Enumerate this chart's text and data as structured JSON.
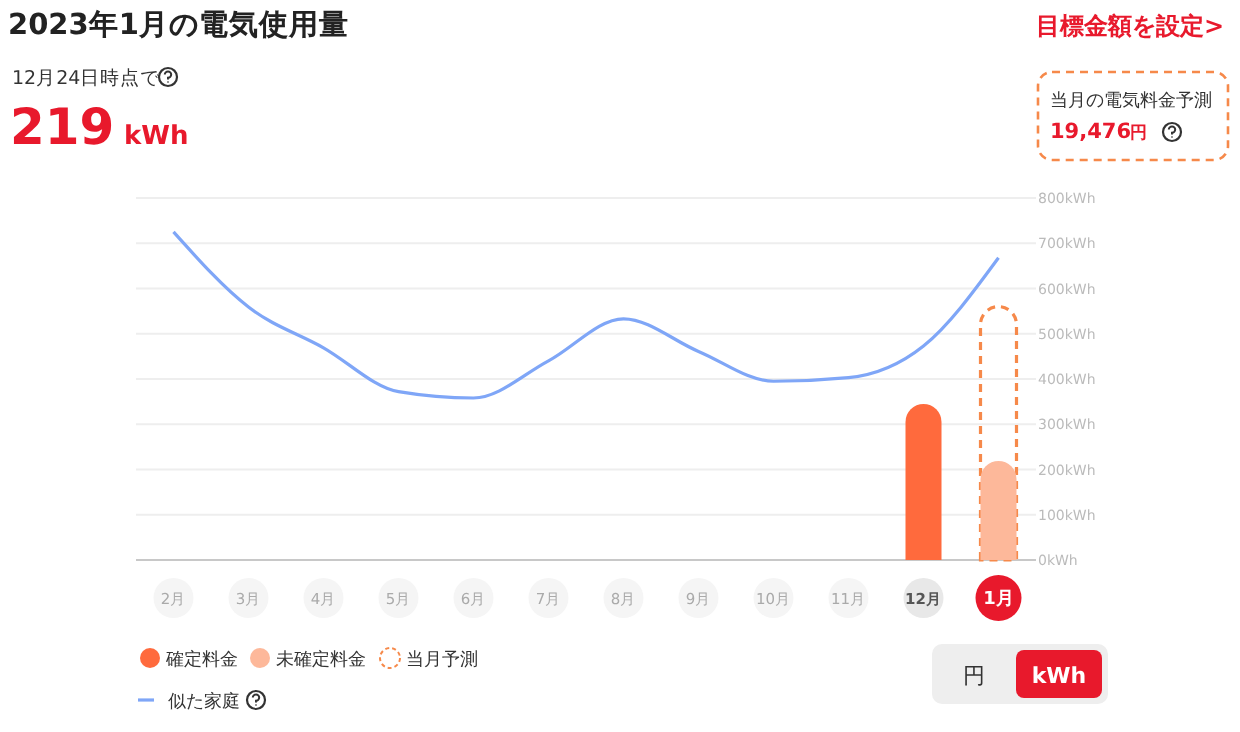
{
  "chart_data": {
    "type": "bar",
    "title": "2023年1月の電気使用量",
    "categories": [
      "2月",
      "3月",
      "4月",
      "5月",
      "6月",
      "7月",
      "8月",
      "9月",
      "10月",
      "11月",
      "12月",
      "1月"
    ],
    "series": [
      {
        "name": "確定料金",
        "color": "#ff6a3d",
        "values": [
          null,
          null,
          null,
          null,
          null,
          null,
          null,
          null,
          null,
          null,
          345,
          null
        ]
      },
      {
        "name": "未確定料金",
        "color": "#fdb89a",
        "values": [
          null,
          null,
          null,
          null,
          null,
          null,
          null,
          null,
          null,
          null,
          null,
          219
        ]
      },
      {
        "name": "当月予測",
        "color": "#f6894a",
        "line_style": "dashed",
        "values": [
          null,
          null,
          null,
          null,
          null,
          null,
          null,
          null,
          null,
          null,
          null,
          560
        ]
      },
      {
        "name": "似た家庭",
        "type": "line",
        "color": "#7fa6f7",
        "values": [
          725,
          559,
          469,
          372,
          358,
          440,
          533,
          461,
          395,
          403,
          473,
          668
        ]
      }
    ],
    "ylim": [
      0,
      800
    ],
    "yticks": [
      {
        "value": 0,
        "label": "0kWh"
      },
      {
        "value": 100,
        "label": "100kWh"
      },
      {
        "value": 200,
        "label": "200kWh"
      },
      {
        "value": 300,
        "label": "300kWh"
      },
      {
        "value": 400,
        "label": "400kWh"
      },
      {
        "value": 500,
        "label": "500kWh"
      },
      {
        "value": 600,
        "label": "600kWh"
      },
      {
        "value": 700,
        "label": "700kWh"
      },
      {
        "value": 800,
        "label": "800kWh"
      }
    ],
    "grid": "y",
    "legend": "bottom left",
    "annotations": [
      "目標金額を設定>",
      "12月24日時点で",
      "219",
      "kWh",
      "当月の電気料金予測",
      "19,476",
      "円",
      "円",
      "kWh"
    ]
  }
}
